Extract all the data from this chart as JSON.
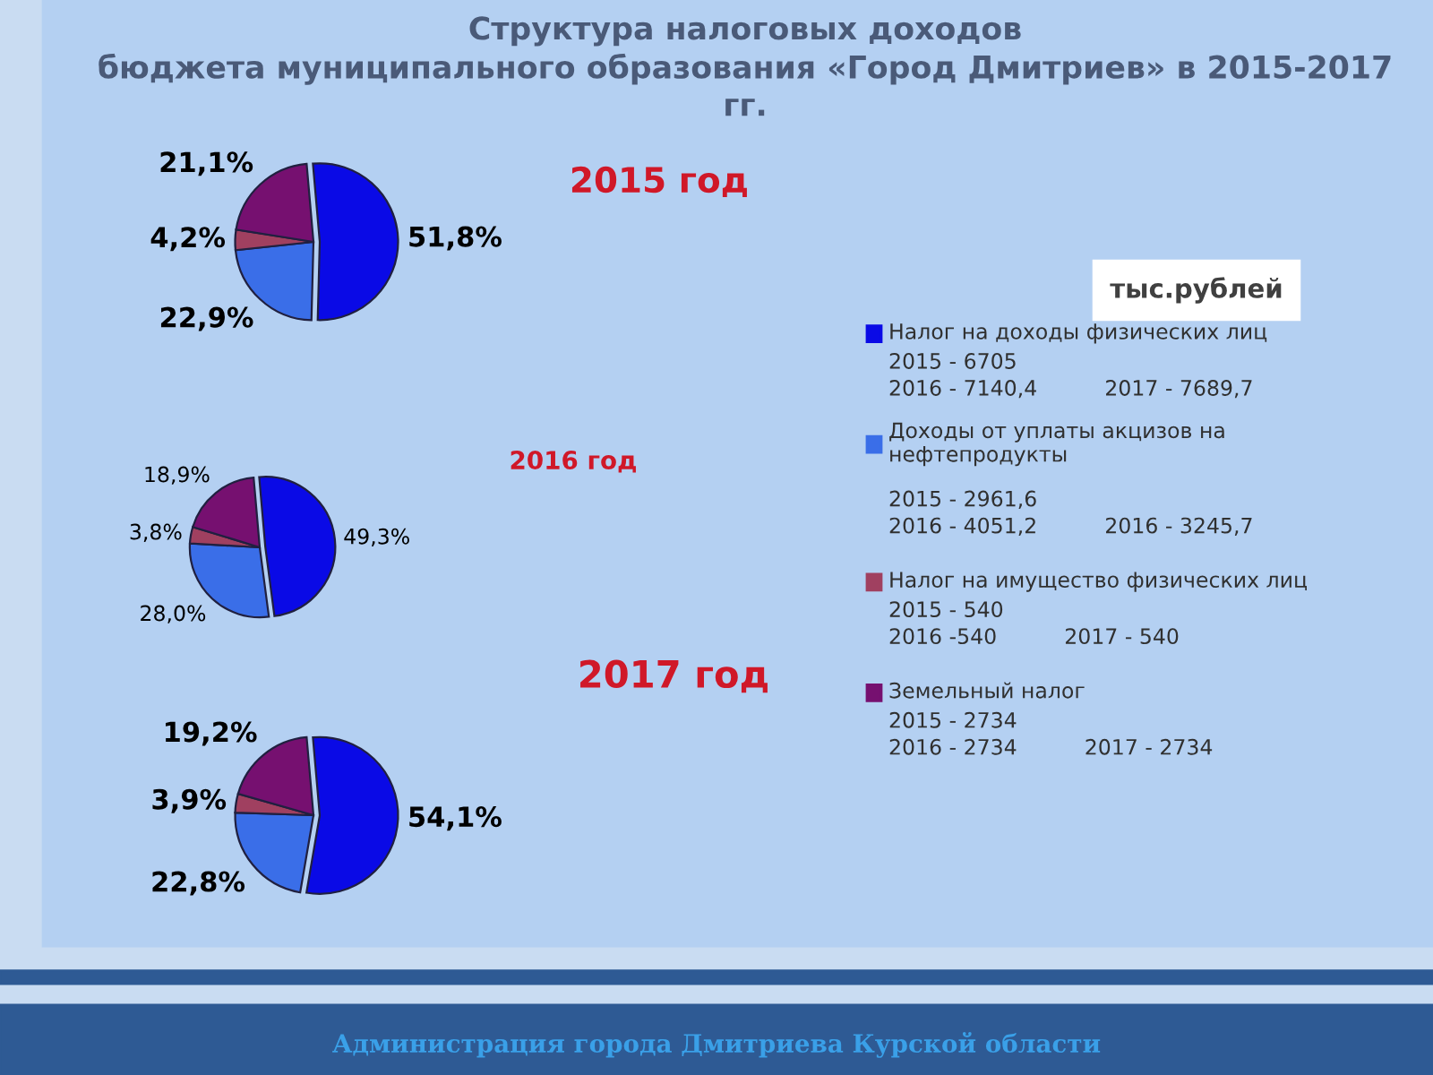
{
  "chart_data": [
    {
      "type": "pie",
      "title": "Структура налоговых доходов\nбюджета муниципального образования «Город Дмитриев» в 2015-2017\nгг.",
      "subtitle": "2015 год",
      "categories": [
        "Налог на доходы физических лиц",
        "Доходы от уплаты акцизов на\nнефтепродукты",
        "Налог на имущество физических лиц",
        "Земельный налог"
      ],
      "values": [
        51.8,
        22.9,
        4.2,
        21.1
      ],
      "value_labels": [
        "51,8%",
        "22,9%",
        "4,2%",
        "21,1%"
      ],
      "colors": [
        "#0a0ae6",
        "#3a6ee8",
        "#a04060",
        "#761070"
      ],
      "legend": "right",
      "annotations": [
        "тыс.рублей",
        "2015 - 6705\n2016 - 7140,4          2017 - 7689,7",
        "2015 - 2961,6\n2016 - 4051,2          2016 - 3245,7",
        "2015 - 540\n2016 -540          2017 - 540",
        "2015 - 2734\n2016 - 2734          2017 - 2734",
        "Администрация города Дмитриева Курской области"
      ]
    },
    {
      "type": "pie",
      "subtitle": "2016 год",
      "values": [
        49.3,
        28.0,
        3.8,
        18.9
      ],
      "value_labels": [
        "49,3%",
        "28,0%",
        "3,8%",
        "18,9%"
      ],
      "colors": [
        "#0a0ae6",
        "#3a6ee8",
        "#a04060",
        "#761070"
      ]
    },
    {
      "type": "pie",
      "subtitle": "2017 год",
      "values": [
        54.1,
        22.8,
        3.9,
        19.2
      ],
      "value_labels": [
        "54,1%",
        "22,8%",
        "3,9%",
        "19,2%"
      ],
      "colors": [
        "#0a0ae6",
        "#3a6ee8",
        "#a04060",
        "#761070"
      ]
    }
  ]
}
